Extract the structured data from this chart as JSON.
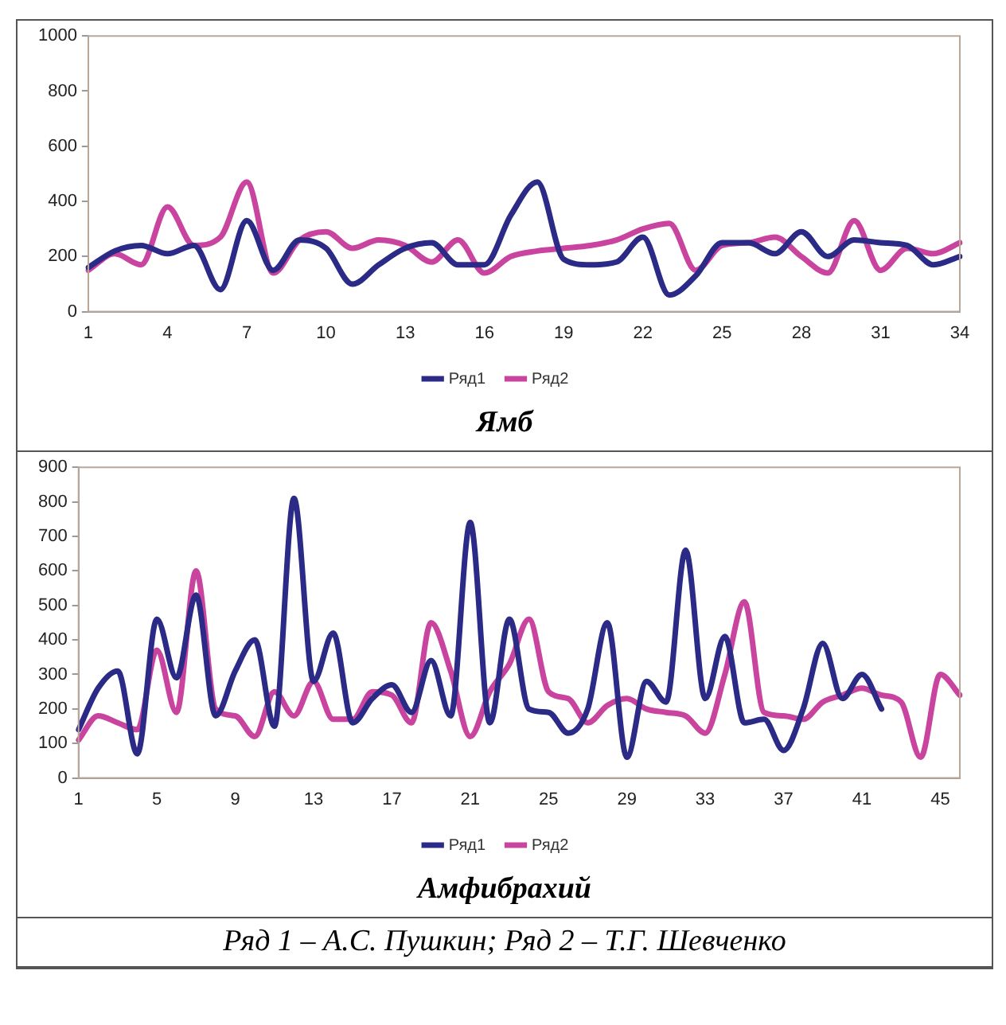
{
  "chart_data": [
    {
      "type": "line",
      "title": "Ямб",
      "categories": [
        "1",
        null,
        null,
        "4",
        null,
        null,
        "7",
        null,
        null,
        "10",
        null,
        null,
        "13",
        null,
        null,
        "16",
        null,
        null,
        "19",
        null,
        null,
        "22",
        null,
        null,
        "25",
        null,
        null,
        "28",
        null,
        null,
        "31",
        null,
        null,
        "34"
      ],
      "series": [
        {
          "name": "Ряд1",
          "color": "#2b2a86",
          "values": [
            160,
            220,
            240,
            210,
            240,
            80,
            330,
            150,
            260,
            230,
            100,
            170,
            230,
            250,
            170,
            170,
            350,
            470,
            190,
            170,
            180,
            270,
            60,
            130,
            250,
            250,
            210,
            290,
            200,
            260,
            250,
            240,
            170,
            200
          ]
        },
        {
          "name": "Ряд2",
          "color": "#c8449e",
          "values": [
            150,
            210,
            170,
            380,
            240,
            270,
            470,
            140,
            260,
            290,
            230,
            260,
            240,
            180,
            260,
            140,
            200,
            220,
            230,
            240,
            260,
            300,
            320,
            150,
            240,
            250,
            270,
            200,
            140,
            330,
            150,
            230,
            210,
            250
          ]
        }
      ],
      "ylim": [
        0,
        1000
      ],
      "yticks": [
        0,
        200,
        400,
        600,
        800,
        1000
      ],
      "grid": false,
      "legend": "bottom",
      "marker": "none"
    },
    {
      "type": "line",
      "title": "Амфибрахий",
      "categories": [
        "1",
        null,
        null,
        null,
        "5",
        null,
        null,
        null,
        "9",
        null,
        null,
        null,
        "13",
        null,
        null,
        null,
        "17",
        null,
        null,
        null,
        "21",
        null,
        null,
        null,
        "25",
        null,
        null,
        null,
        "29",
        null,
        null,
        null,
        "33",
        null,
        null,
        null,
        "37",
        null,
        null,
        null,
        "41",
        null,
        null,
        null,
        "45",
        null
      ],
      "series": [
        {
          "name": "Ряд1",
          "color": "#2b2a86",
          "values": [
            140,
            260,
            310,
            70,
            460,
            290,
            530,
            180,
            310,
            400,
            150,
            810,
            280,
            420,
            160,
            230,
            270,
            190,
            340,
            180,
            740,
            160,
            460,
            200,
            190,
            130,
            200,
            450,
            60,
            280,
            220,
            660,
            230,
            410,
            160,
            170,
            80,
            200,
            390,
            230,
            300,
            200,
            null,
            null,
            null,
            null
          ]
        },
        {
          "name": "Ряд2",
          "color": "#c8449e",
          "values": [
            110,
            180,
            160,
            140,
            370,
            190,
            600,
            200,
            180,
            120,
            250,
            180,
            280,
            170,
            170,
            250,
            240,
            160,
            450,
            310,
            120,
            250,
            330,
            460,
            250,
            230,
            160,
            210,
            230,
            200,
            190,
            180,
            130,
            300,
            510,
            190,
            180,
            170,
            220,
            240,
            260,
            240,
            220,
            60,
            300,
            240
          ]
        }
      ],
      "ylim": [
        0,
        900
      ],
      "yticks": [
        0,
        100,
        200,
        300,
        400,
        500,
        600,
        700,
        800,
        900
      ],
      "grid": false,
      "legend": "bottom",
      "marker": "none",
      "annotations": [
        "Ряд 1 – А.С. Пушкин; Ряд 2 – Т.Г. Шевченко"
      ]
    }
  ]
}
